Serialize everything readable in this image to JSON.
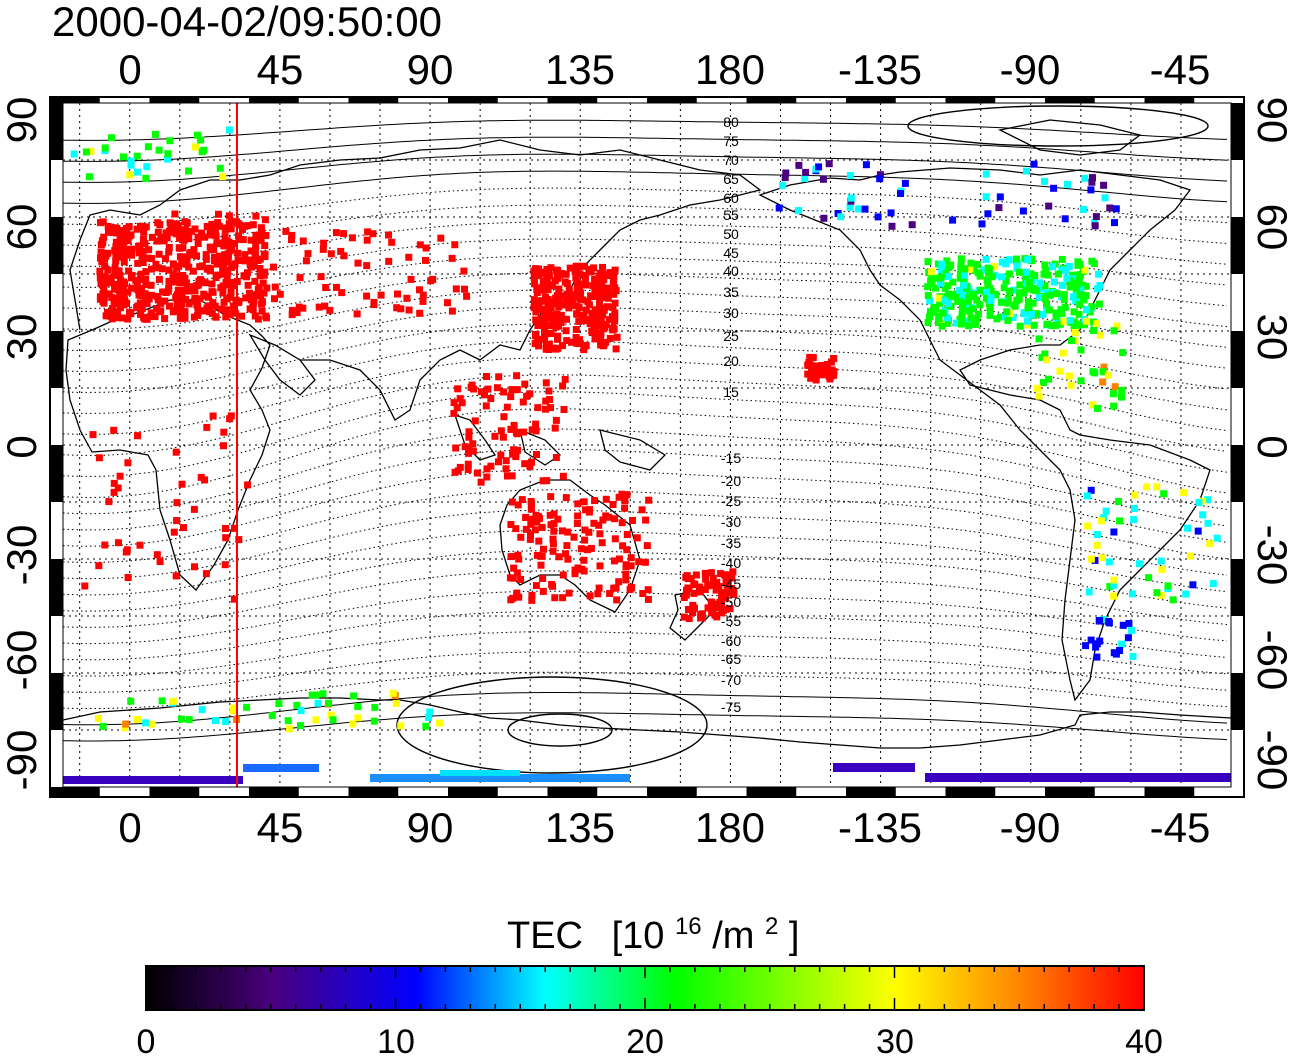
{
  "title": "2000-04-02/09:50:00",
  "map": {
    "lon_ticks": [
      "0",
      "45",
      "90",
      "135",
      "180",
      "-135",
      "-90",
      "-45"
    ],
    "lat_ticks": [
      "90",
      "60",
      "30",
      "0",
      "-30",
      "-60",
      "-90"
    ],
    "magnetic_lat_labels": [
      "80",
      "75",
      "70",
      "65",
      "60",
      "55",
      "50",
      "45",
      "40",
      "35",
      "30",
      "25",
      "20",
      "15",
      "-15",
      "-20",
      "-25",
      "-30",
      "-35",
      "-40",
      "-45",
      "-50",
      "-55",
      "-60",
      "-65",
      "-70",
      "-75"
    ],
    "terminator_lon_deg": 32,
    "grid": "dotted, every 15°"
  },
  "colorbar": {
    "label": "TEC",
    "unit_prefix": "[10",
    "unit_exp": "16",
    "unit_mid": "/m",
    "unit_exp2": "2",
    "unit_suffix": "]",
    "ticks": [
      "0",
      "10",
      "20",
      "30",
      "40"
    ],
    "min": 0,
    "max": 40,
    "colormap": [
      "#000000",
      "#4a0080",
      "#0000ff",
      "#00ffff",
      "#00ff00",
      "#ffff00",
      "#ff8000",
      "#ff0000"
    ]
  },
  "colors": {
    "terminator": "#ff0000",
    "coastline": "#000000",
    "contour": "#000000"
  }
}
